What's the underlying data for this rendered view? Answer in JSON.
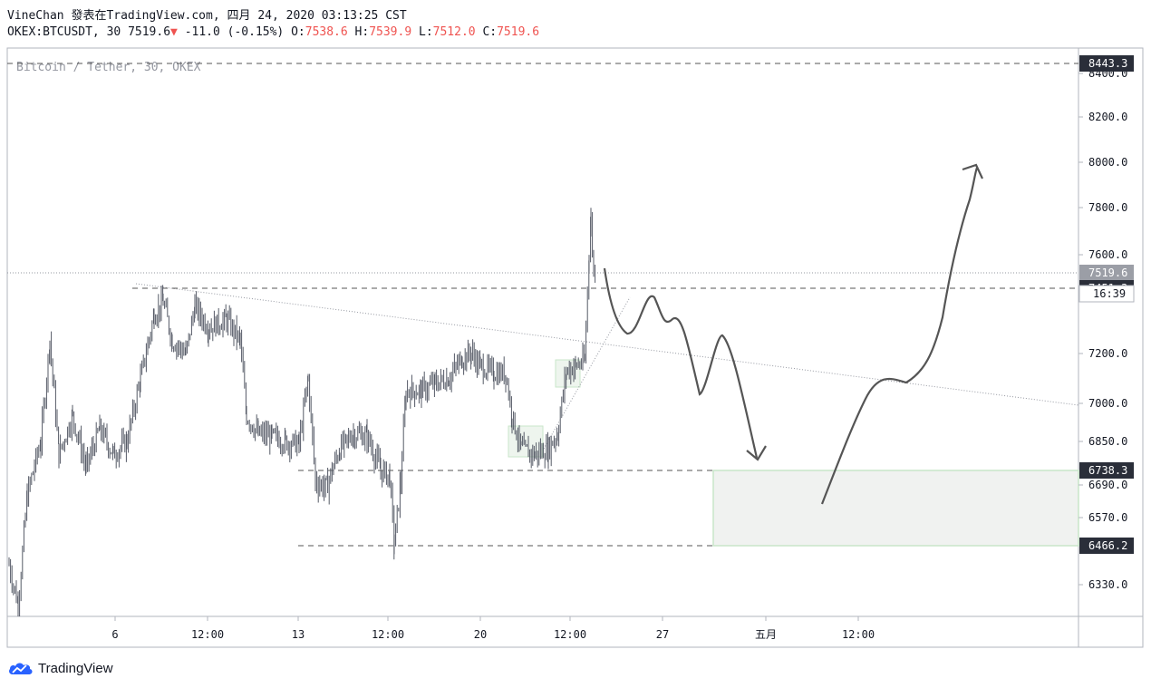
{
  "header": {
    "publish_line": "VineChan 發表在TradingView.com, 四月 24, 2020 03:13:25 CST",
    "symbol": "OKEX:BTCUSDT, 30",
    "last": "7519.6",
    "change": "-11.0 (-0.15%)",
    "o_label": "O:",
    "o": "7538.6",
    "h_label": "H:",
    "h": "7539.9",
    "l_label": "L:",
    "l": "7512.0",
    "c_label": "C:",
    "c": "7519.6"
  },
  "watermark": "Bitcoin / Tether, 30, OKEX",
  "footer": {
    "brand": "TradingView"
  },
  "colors": {
    "candle": "#555a66",
    "price_badge": "#9b9ea6",
    "dark_badge": "#2a2e39",
    "zone_fill": "#f0f2f0",
    "zone_border": "#c8e6c9",
    "arrow": "#555555"
  },
  "chart_data": {
    "type": "line",
    "symbol": "OKEX:BTCUSDT",
    "interval": "30",
    "y_axis_ticks": [
      8400.0,
      8200.0,
      8000.0,
      7800.0,
      7600.0,
      7200.0,
      7000.0,
      6850.0,
      6690.0,
      6570.0,
      6330.0
    ],
    "y_axis_tick_labels": [
      "8400.0",
      "8200.0",
      "8000.0",
      "7800.0",
      "7600.0",
      "7200.0",
      "7000.0",
      "6850.0",
      "6690.0",
      "6570.0",
      "6330.0"
    ],
    "x_axis_labels": [
      "6",
      "12:00",
      "13",
      "12:00",
      "20",
      "12:00",
      "27",
      "五月",
      "12:00"
    ],
    "price_levels": [
      {
        "value": 8443.3,
        "label": "8443.3"
      },
      {
        "value": 7519.6,
        "label": "7519.6",
        "style": "current"
      },
      {
        "value": 7451.3,
        "label": "7451.3"
      },
      {
        "value": 6738.3,
        "label": "6738.3"
      },
      {
        "value": 6466.2,
        "label": "6466.2"
      }
    ],
    "countdown": "16:39",
    "price_path": [
      {
        "x": 0,
        "y": 6400
      },
      {
        "x": 10,
        "y": 6250
      },
      {
        "x": 20,
        "y": 6650
      },
      {
        "x": 35,
        "y": 6850
      },
      {
        "x": 45,
        "y": 7250
      },
      {
        "x": 55,
        "y": 6800
      },
      {
        "x": 70,
        "y": 6950
      },
      {
        "x": 85,
        "y": 6750
      },
      {
        "x": 100,
        "y": 6900
      },
      {
        "x": 115,
        "y": 6800
      },
      {
        "x": 130,
        "y": 6850
      },
      {
        "x": 145,
        "y": 7100
      },
      {
        "x": 160,
        "y": 7350
      },
      {
        "x": 170,
        "y": 7400
      },
      {
        "x": 180,
        "y": 7250
      },
      {
        "x": 195,
        "y": 7200
      },
      {
        "x": 205,
        "y": 7380
      },
      {
        "x": 220,
        "y": 7300
      },
      {
        "x": 240,
        "y": 7330
      },
      {
        "x": 255,
        "y": 7250
      },
      {
        "x": 262,
        "y": 6950
      },
      {
        "x": 275,
        "y": 6880
      },
      {
        "x": 290,
        "y": 6870
      },
      {
        "x": 305,
        "y": 6850
      },
      {
        "x": 320,
        "y": 6840
      },
      {
        "x": 330,
        "y": 7100
      },
      {
        "x": 338,
        "y": 6700
      },
      {
        "x": 350,
        "y": 6680
      },
      {
        "x": 365,
        "y": 6820
      },
      {
        "x": 380,
        "y": 6880
      },
      {
        "x": 395,
        "y": 6870
      },
      {
        "x": 410,
        "y": 6740
      },
      {
        "x": 420,
        "y": 6720
      },
      {
        "x": 425,
        "y": 6470
      },
      {
        "x": 432,
        "y": 6700
      },
      {
        "x": 438,
        "y": 7050
      },
      {
        "x": 455,
        "y": 7050
      },
      {
        "x": 470,
        "y": 7080
      },
      {
        "x": 485,
        "y": 7100
      },
      {
        "x": 500,
        "y": 7180
      },
      {
        "x": 510,
        "y": 7200
      },
      {
        "x": 520,
        "y": 7150
      },
      {
        "x": 535,
        "y": 7120
      },
      {
        "x": 548,
        "y": 7120
      },
      {
        "x": 555,
        "y": 6950
      },
      {
        "x": 565,
        "y": 6820
      },
      {
        "x": 580,
        "y": 6800
      },
      {
        "x": 595,
        "y": 6820
      },
      {
        "x": 605,
        "y": 6880
      },
      {
        "x": 615,
        "y": 7130
      },
      {
        "x": 625,
        "y": 7150
      },
      {
        "x": 635,
        "y": 7170
      },
      {
        "x": 640,
        "y": 7600
      },
      {
        "x": 642,
        "y": 7750
      },
      {
        "x": 645,
        "y": 7520
      },
      {
        "x": 648,
        "y": 7519.6
      }
    ]
  }
}
